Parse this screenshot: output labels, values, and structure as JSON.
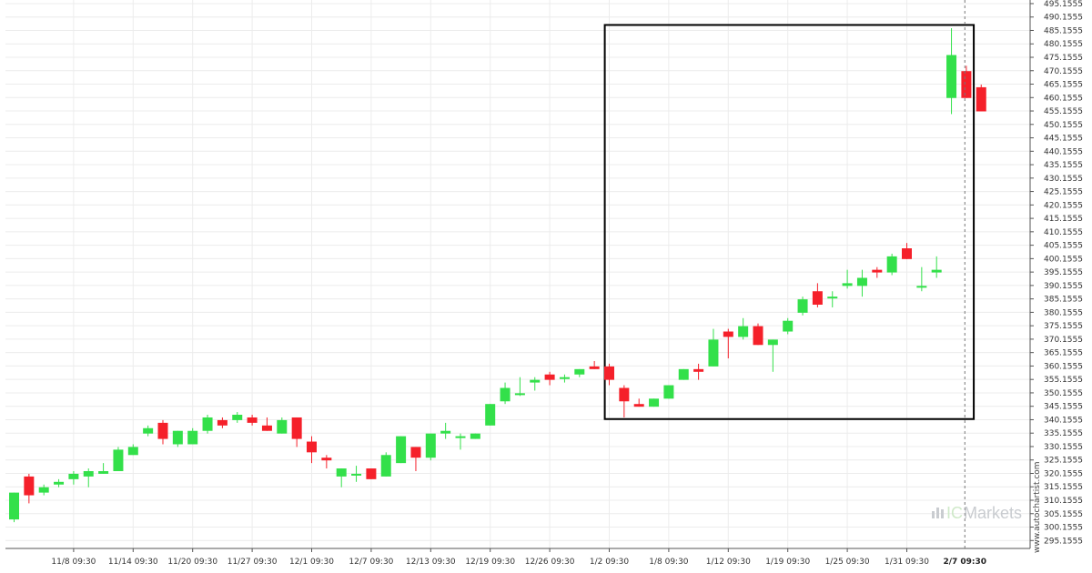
{
  "watermark": "www.autochartist.com",
  "brand": {
    "prefix": "IC",
    "name": "Markets"
  },
  "colors": {
    "up": "#33e04a",
    "down": "#f5202a",
    "grid": "#ececec",
    "box": "#000000",
    "axis": "#555555"
  },
  "chart_data": {
    "type": "candlestick",
    "ylim": [
      292.2,
      496.5
    ],
    "y_ticks": [
      "295.1555",
      "300.1555",
      "305.1555",
      "310.1555",
      "315.1555",
      "320.1555",
      "325.1555",
      "330.1555",
      "335.1555",
      "340.1555",
      "345.1555",
      "350.1555",
      "355.1555",
      "360.1555",
      "365.1555",
      "370.1555",
      "375.1555",
      "380.1555",
      "385.1555",
      "390.1555",
      "395.1555",
      "400.1555",
      "405.1555",
      "410.1555",
      "415.1555",
      "420.1555",
      "425.1555",
      "430.1555",
      "435.1555",
      "440.1555",
      "445.1555",
      "450.1555",
      "455.1555",
      "460.1555",
      "465.1555",
      "470.1555",
      "475.1555",
      "480.1555",
      "485.1555",
      "490.1555",
      "495.1555"
    ],
    "x_ticks": [
      {
        "label": "11/8 09:30",
        "index": 4
      },
      {
        "label": "11/14 09:30",
        "index": 8
      },
      {
        "label": "11/20 09:30",
        "index": 12
      },
      {
        "label": "11/27 09:30",
        "index": 16
      },
      {
        "label": "12/1 09:30",
        "index": 20
      },
      {
        "label": "12/7 09:30",
        "index": 24
      },
      {
        "label": "12/13 09:30",
        "index": 28
      },
      {
        "label": "12/19 09:30",
        "index": 32
      },
      {
        "label": "12/26 09:30",
        "index": 36
      },
      {
        "label": "1/2 09:30",
        "index": 40
      },
      {
        "label": "1/8 09:30",
        "index": 44
      },
      {
        "label": "1/12 09:30",
        "index": 48
      },
      {
        "label": "1/19 09:30",
        "index": 52
      },
      {
        "label": "1/25 09:30",
        "index": 56
      },
      {
        "label": "1/31 09:30",
        "index": 60
      }
    ],
    "current_x_label": "2/7 09:30",
    "current_index": 63.9,
    "highlight_box": {
      "x_start_index": 39.7,
      "x_end_index": 64.5,
      "y_low": 340.4,
      "y_high": 487.2
    },
    "candles": [
      {
        "o": 303,
        "h": 313,
        "l": 302,
        "c": 313
      },
      {
        "o": 319,
        "h": 320,
        "l": 309,
        "c": 312
      },
      {
        "o": 313,
        "h": 316,
        "l": 312,
        "c": 315
      },
      {
        "o": 316,
        "h": 318,
        "l": 315,
        "c": 317
      },
      {
        "o": 318,
        "h": 321,
        "l": 316,
        "c": 320
      },
      {
        "o": 319,
        "h": 322,
        "l": 315,
        "c": 321
      },
      {
        "o": 320,
        "h": 324,
        "l": 320,
        "c": 321
      },
      {
        "o": 321,
        "h": 330,
        "l": 321,
        "c": 329
      },
      {
        "o": 327,
        "h": 331,
        "l": 327,
        "c": 330
      },
      {
        "o": 335,
        "h": 338,
        "l": 334,
        "c": 337
      },
      {
        "o": 339,
        "h": 340,
        "l": 331,
        "c": 333
      },
      {
        "o": 331,
        "h": 336,
        "l": 330,
        "c": 336
      },
      {
        "o": 331,
        "h": 337,
        "l": 331,
        "c": 336
      },
      {
        "o": 336,
        "h": 342,
        "l": 335,
        "c": 341
      },
      {
        "o": 340,
        "h": 341,
        "l": 337,
        "c": 338
      },
      {
        "o": 340,
        "h": 343,
        "l": 339,
        "c": 342
      },
      {
        "o": 341,
        "h": 342,
        "l": 338,
        "c": 339
      },
      {
        "o": 338,
        "h": 341,
        "l": 336,
        "c": 336
      },
      {
        "o": 335,
        "h": 341,
        "l": 335,
        "c": 340
      },
      {
        "o": 341,
        "h": 341,
        "l": 330,
        "c": 333
      },
      {
        "o": 332,
        "h": 334,
        "l": 324,
        "c": 328
      },
      {
        "o": 326,
        "h": 327,
        "l": 322,
        "c": 325
      },
      {
        "o": 319,
        "h": 322,
        "l": 315,
        "c": 322
      },
      {
        "o": 320,
        "h": 323,
        "l": 317,
        "c": 320
      },
      {
        "o": 322,
        "h": 322,
        "l": 318,
        "c": 318
      },
      {
        "o": 319,
        "h": 328,
        "l": 319,
        "c": 327
      },
      {
        "o": 324,
        "h": 334,
        "l": 324,
        "c": 334
      },
      {
        "o": 330,
        "h": 330,
        "l": 321,
        "c": 326
      },
      {
        "o": 326,
        "h": 335,
        "l": 325,
        "c": 335
      },
      {
        "o": 335,
        "h": 339,
        "l": 333,
        "c": 336
      },
      {
        "o": 334,
        "h": 335,
        "l": 329,
        "c": 334
      },
      {
        "o": 333,
        "h": 335,
        "l": 333,
        "c": 335
      },
      {
        "o": 338,
        "h": 346,
        "l": 338,
        "c": 346
      },
      {
        "o": 347,
        "h": 354,
        "l": 346,
        "c": 352
      },
      {
        "o": 350,
        "h": 356,
        "l": 349,
        "c": 350
      },
      {
        "o": 354,
        "h": 356,
        "l": 351,
        "c": 355
      },
      {
        "o": 357,
        "h": 358,
        "l": 353,
        "c": 355
      },
      {
        "o": 356,
        "h": 357,
        "l": 354,
        "c": 356
      },
      {
        "o": 357,
        "h": 359,
        "l": 356,
        "c": 359
      },
      {
        "o": 360,
        "h": 362,
        "l": 359,
        "c": 359
      },
      {
        "o": 360,
        "h": 361,
        "l": 353,
        "c": 355
      },
      {
        "o": 352,
        "h": 353,
        "l": 341,
        "c": 347
      },
      {
        "o": 346,
        "h": 348,
        "l": 345,
        "c": 345
      },
      {
        "o": 345,
        "h": 348,
        "l": 345,
        "c": 348
      },
      {
        "o": 348,
        "h": 353,
        "l": 348,
        "c": 353
      },
      {
        "o": 355,
        "h": 359,
        "l": 355,
        "c": 359
      },
      {
        "o": 359,
        "h": 361,
        "l": 355,
        "c": 358
      },
      {
        "o": 360,
        "h": 374,
        "l": 360,
        "c": 370
      },
      {
        "o": 373,
        "h": 374,
        "l": 363,
        "c": 371
      },
      {
        "o": 371,
        "h": 378,
        "l": 370,
        "c": 375
      },
      {
        "o": 375,
        "h": 376,
        "l": 368,
        "c": 368
      },
      {
        "o": 368,
        "h": 370,
        "l": 358,
        "c": 370
      },
      {
        "o": 373,
        "h": 378,
        "l": 372,
        "c": 377
      },
      {
        "o": 380,
        "h": 386,
        "l": 379,
        "c": 385
      },
      {
        "o": 388,
        "h": 391,
        "l": 382,
        "c": 383
      },
      {
        "o": 386,
        "h": 388,
        "l": 382,
        "c": 386
      },
      {
        "o": 390,
        "h": 396,
        "l": 389,
        "c": 391
      },
      {
        "o": 390,
        "h": 396,
        "l": 386,
        "c": 393
      },
      {
        "o": 396,
        "h": 397,
        "l": 393,
        "c": 395
      },
      {
        "o": 395,
        "h": 402,
        "l": 394,
        "c": 401
      },
      {
        "o": 404,
        "h": 406,
        "l": 400,
        "c": 400
      },
      {
        "o": 390,
        "h": 397,
        "l": 388,
        "c": 390
      },
      {
        "o": 395,
        "h": 401,
        "l": 393,
        "c": 396
      },
      {
        "o": 460,
        "h": 486,
        "l": 454,
        "c": 476
      },
      {
        "o": 470,
        "h": 472,
        "l": 460,
        "c": 460
      },
      {
        "o": 464,
        "h": 465,
        "l": 455,
        "c": 455
      }
    ]
  }
}
